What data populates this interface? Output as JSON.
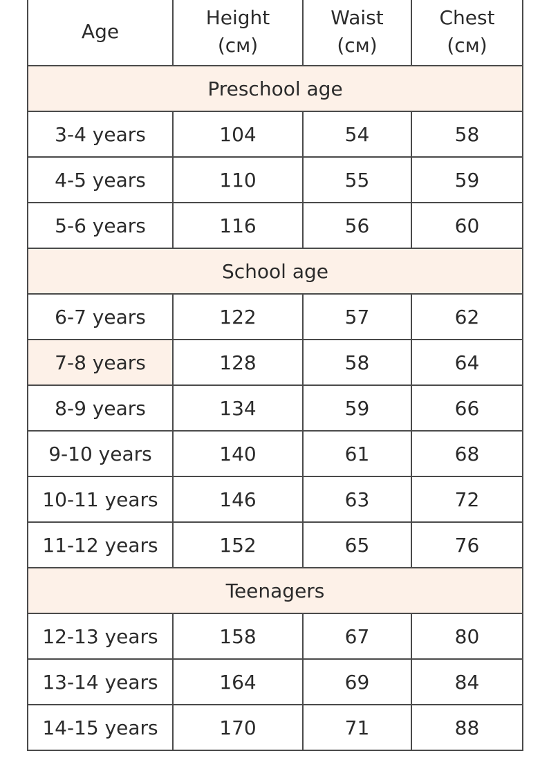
{
  "header": {
    "age": "Age",
    "height": [
      "Height",
      "(см)"
    ],
    "waist": [
      "Waist",
      "(см)"
    ],
    "chest": [
      "Chest",
      "(см)"
    ]
  },
  "sections": [
    {
      "title": "Preschool age",
      "rows": [
        {
          "age": "3-4 years",
          "height": "104",
          "waist": "54",
          "chest": "58"
        },
        {
          "age": "4-5 years",
          "height": "110",
          "waist": "55",
          "chest": "59"
        },
        {
          "age": "5-6 years",
          "height": "116",
          "waist": "56",
          "chest": "60"
        }
      ]
    },
    {
      "title": "School age",
      "rows": [
        {
          "age": "6-7 years",
          "height": "122",
          "waist": "57",
          "chest": "62"
        },
        {
          "age": "7-8 years",
          "height": "128",
          "waist": "58",
          "chest": "64",
          "highlight_age": true
        },
        {
          "age": "8-9 years",
          "height": "134",
          "waist": "59",
          "chest": "66"
        },
        {
          "age": "9-10 years",
          "height": "140",
          "waist": "61",
          "chest": "68"
        },
        {
          "age": "10-11 years",
          "height": "146",
          "waist": "63",
          "chest": "72"
        },
        {
          "age": "11-12 years",
          "height": "152",
          "waist": "65",
          "chest": "76"
        }
      ]
    },
    {
      "title": "Teenagers",
      "rows": [
        {
          "age": "12-13 years",
          "height": "158",
          "waist": "67",
          "chest": "80"
        },
        {
          "age": "13-14 years",
          "height": "164",
          "waist": "69",
          "chest": "84"
        },
        {
          "age": "14-15 years",
          "height": "170",
          "waist": "71",
          "chest": "88"
        }
      ]
    }
  ],
  "colors": {
    "section_background": "#fdf1e8",
    "border": "#4a4a4a",
    "text": "#2b2b2b"
  }
}
